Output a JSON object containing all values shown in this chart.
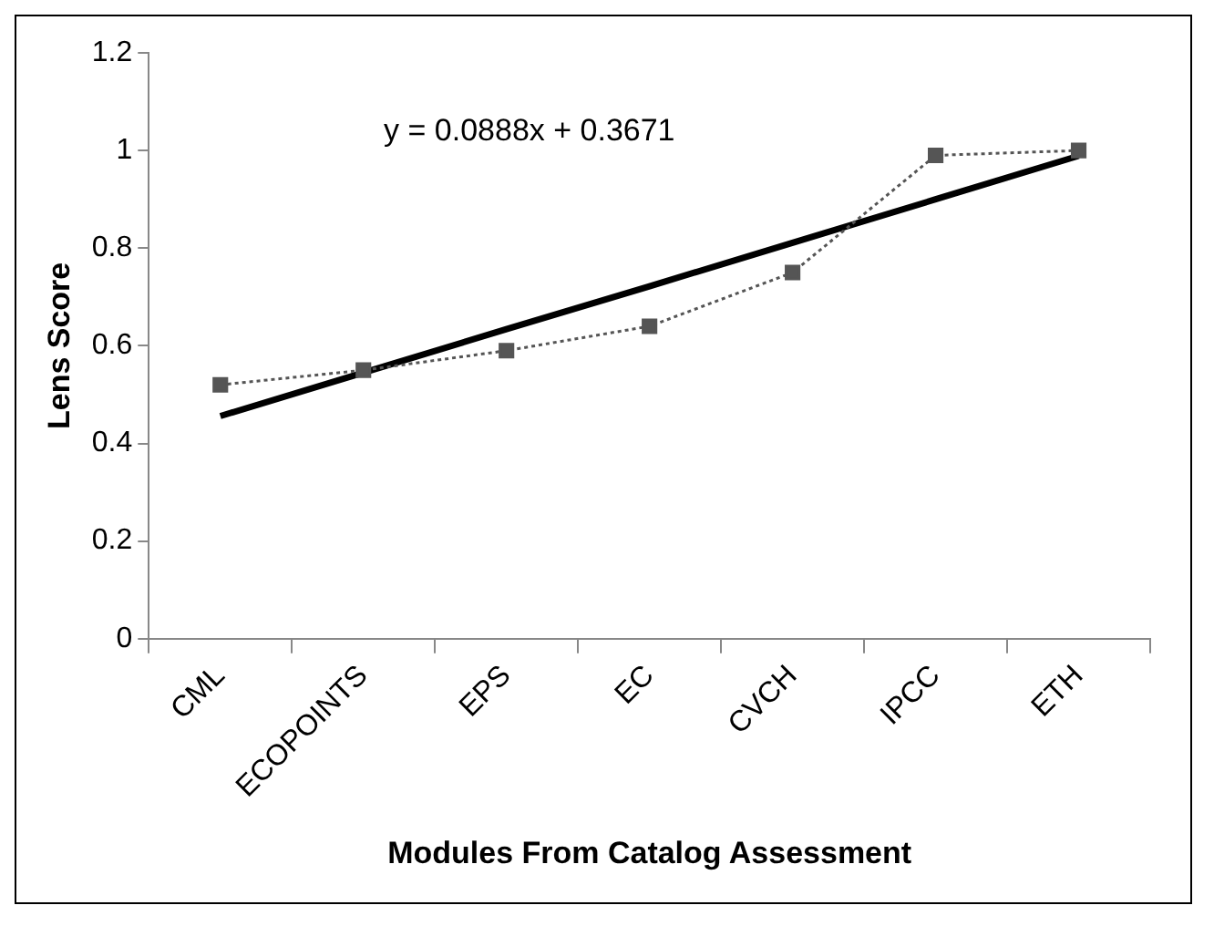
{
  "chart_data": {
    "type": "line",
    "xlabel": "Modules From Catalog Assessment",
    "ylabel": "Lens Score",
    "categories": [
      "CML",
      "ECOPOINTS",
      "EPS",
      "EC",
      "CVCH",
      "IPCC",
      "ETH"
    ],
    "series": [
      {
        "color": "#555555",
        "values": [
          0.52,
          0.55,
          0.59,
          0.64,
          0.75,
          0.99,
          1.0
        ],
        "marker": "square",
        "line_style": "dotted"
      },
      {
        "type": "line",
        "color": "#000000",
        "values": [
          0.456,
          0.545,
          0.634,
          0.722,
          0.811,
          0.9,
          0.989
        ],
        "marker": "none",
        "line_style": "solid"
      }
    ],
    "ylim": [
      0,
      1.2
    ],
    "yticks": [
      0,
      0.2,
      0.4,
      0.6,
      0.8,
      1,
      1.2
    ],
    "grid": false,
    "legend": false,
    "annotations": [
      "y = 0.0888x + 0.3671"
    ]
  }
}
